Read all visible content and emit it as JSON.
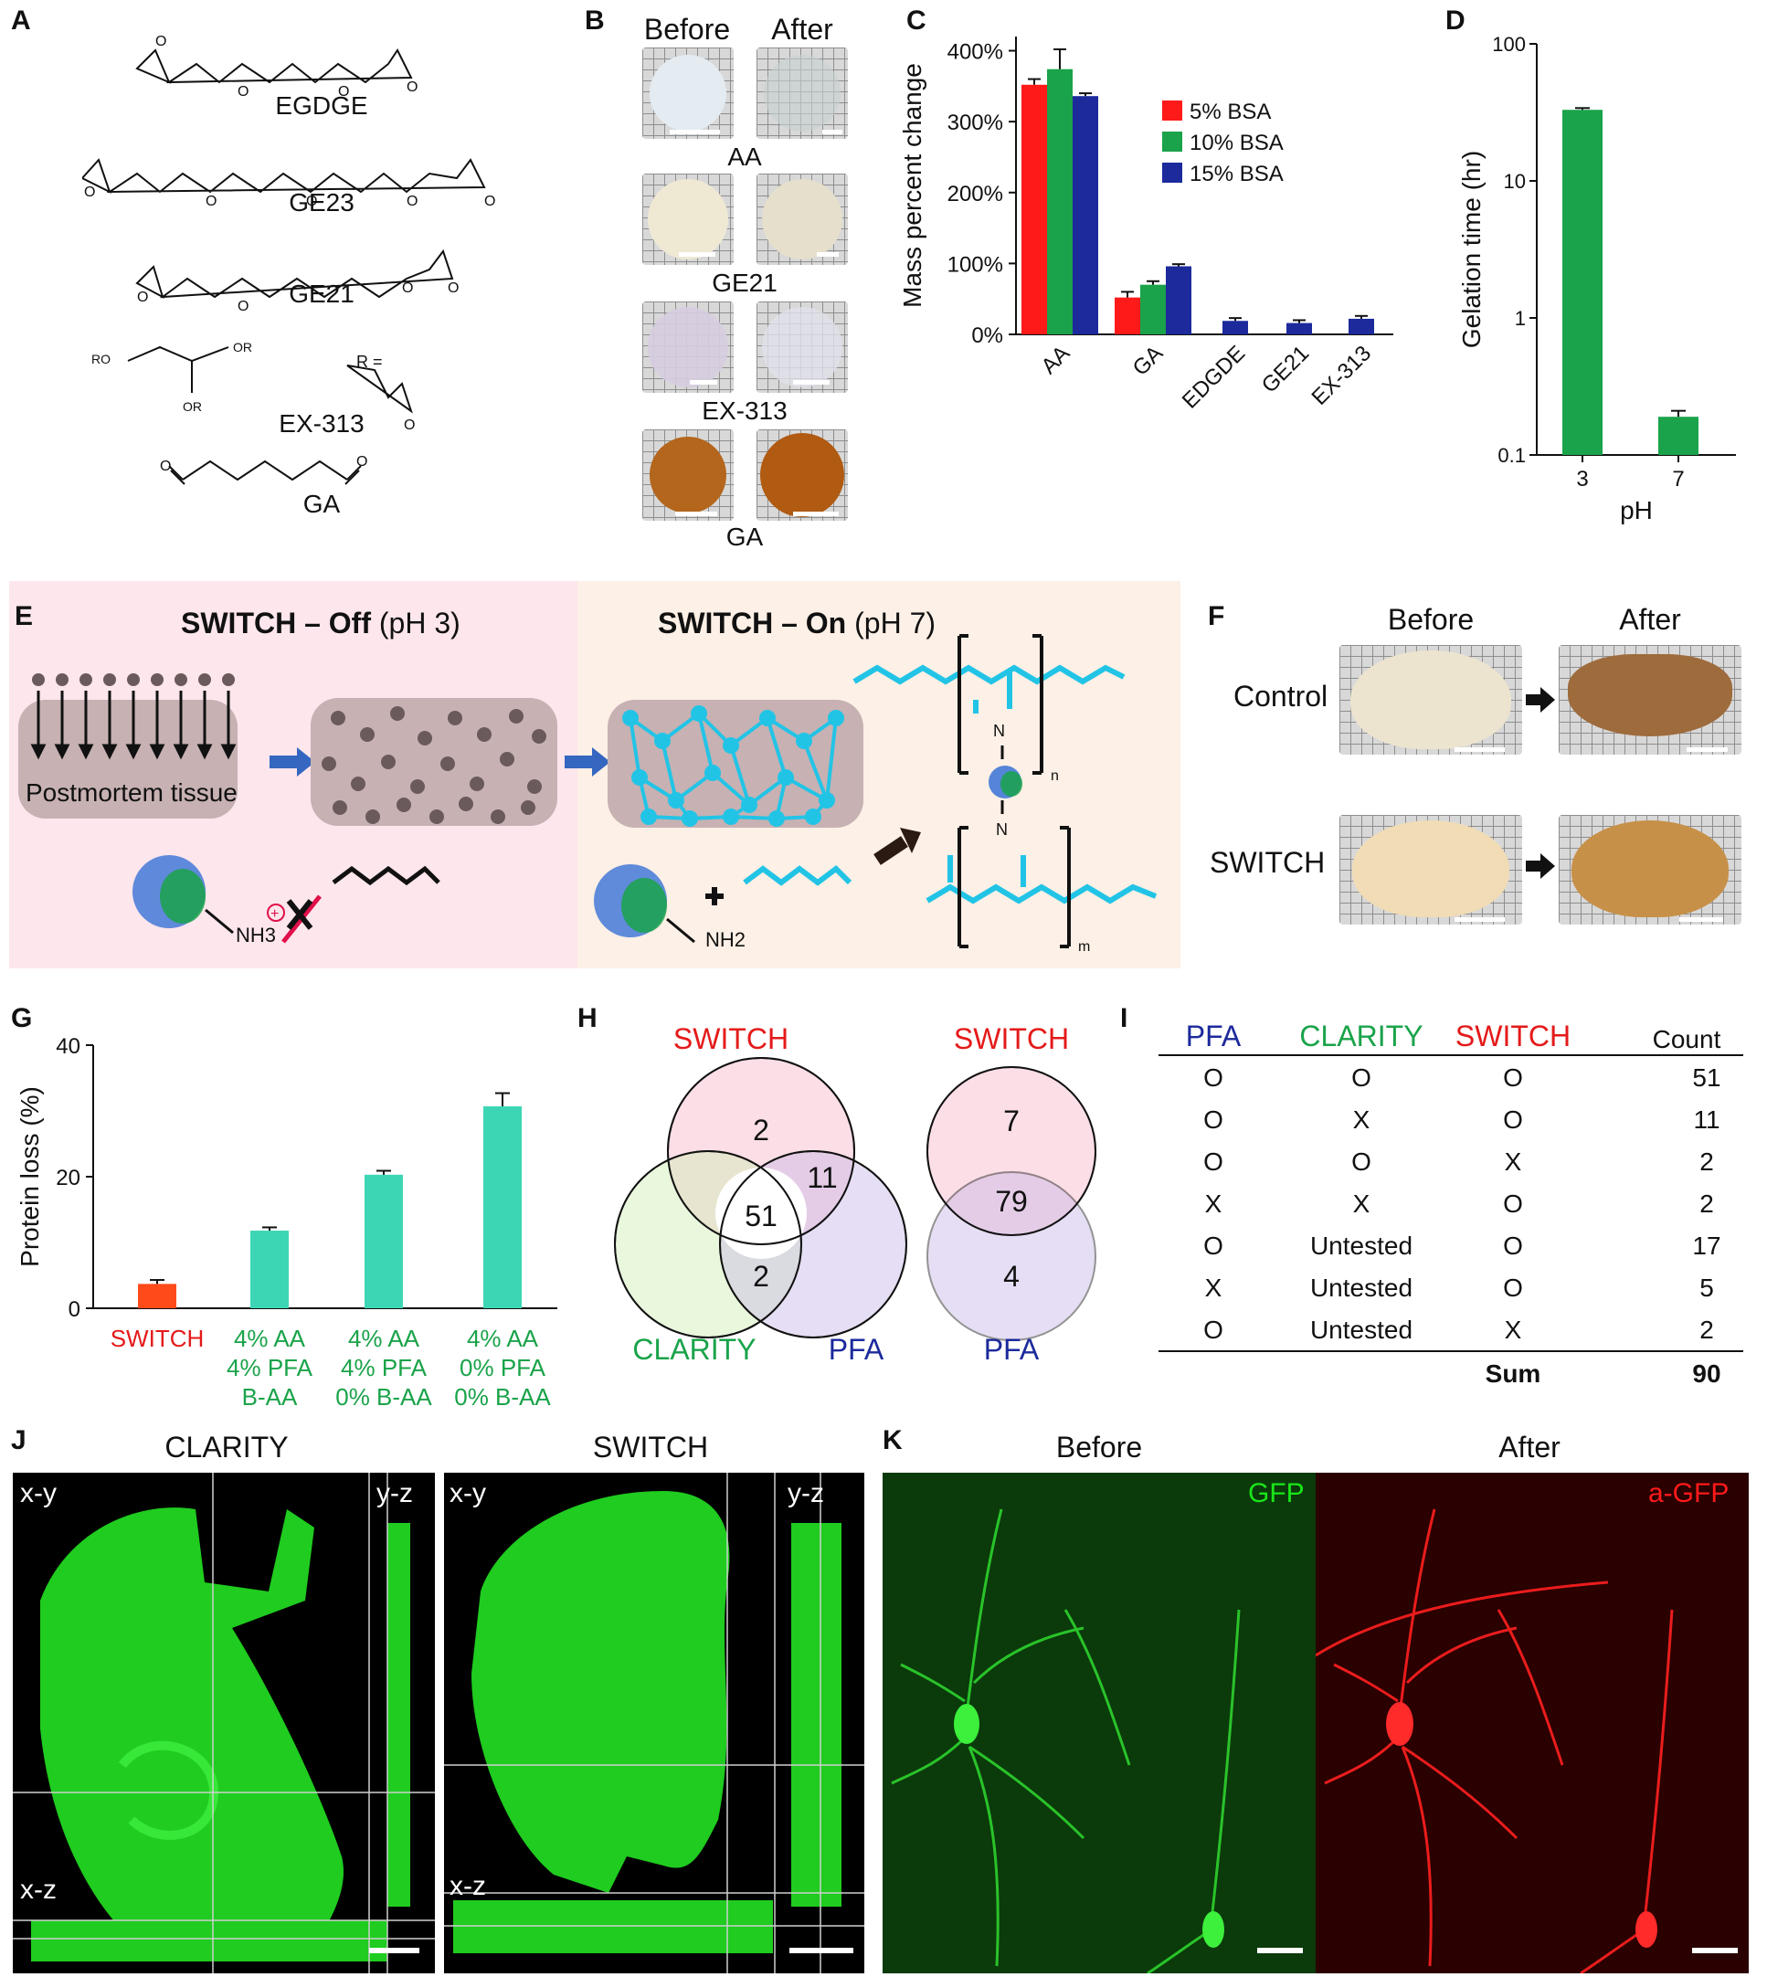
{
  "panels": {
    "A": {
      "letter": "A",
      "names": [
        "EGDGE",
        "GE23",
        "GE21",
        "EX-313",
        "GA"
      ],
      "ex313_substituents": {
        "ro1": "RO",
        "ro2": "OR",
        "ro3": "OR",
        "r_eq": "R ="
      }
    },
    "B": {
      "letter": "B",
      "headers": [
        "Before",
        "After"
      ],
      "rows": [
        "AA",
        "GE21",
        "EX-313",
        "GA"
      ]
    },
    "C": {
      "letter": "C"
    },
    "D": {
      "letter": "D"
    },
    "E": {
      "letter": "E",
      "off_title_bold": "SWITCH – Off",
      "off_title_ph": "(pH 3)",
      "on_title_bold": "SWITCH – On",
      "on_title_ph": "(pH 7)",
      "tissue_label": "Postmortem tissue",
      "nh3": "NH3",
      "nh2": "NH2",
      "n_label": "N",
      "sub_n": "n",
      "sub_m": "m"
    },
    "F": {
      "letter": "F",
      "headers": [
        "Before",
        "After"
      ],
      "rows": [
        "Control",
        "SWITCH"
      ]
    },
    "G": {
      "letter": "G"
    },
    "H": {
      "letter": "H"
    },
    "I": {
      "letter": "I"
    },
    "J": {
      "letter": "J",
      "titles": [
        "CLARITY",
        "SWITCH"
      ],
      "view_labels": {
        "xy": "x-y",
        "yz": "y-z",
        "xz": "x-z"
      }
    },
    "K": {
      "letter": "K",
      "titles": [
        "Before",
        "After"
      ],
      "channel_labels": [
        "GFP",
        "a-GFP"
      ]
    }
  },
  "colors": {
    "red": "#ff1a1a",
    "green": "#1aa34a",
    "blue": "#1c2a9c",
    "teal": "#3dd6b5",
    "switch_red": "#ff4a1a",
    "cyan": "#22c4e6",
    "off_bg": "#fde6ec",
    "on_bg": "#fdf0e6",
    "fluor_green": "#19e619",
    "fluor_red": "#ff1a1a"
  },
  "chart_data": [
    {
      "panel": "C",
      "type": "bar",
      "categories": [
        "AA",
        "GA",
        "EDGDE",
        "GE21",
        "EX-313"
      ],
      "series": [
        {
          "name": "5% BSA",
          "values": [
            352,
            52,
            null,
            null,
            null
          ],
          "errors": [
            8,
            8,
            null,
            null,
            null
          ]
        },
        {
          "name": "10% BSA",
          "values": [
            374,
            70,
            null,
            null,
            null
          ],
          "errors": [
            28,
            5,
            null,
            null,
            null
          ]
        },
        {
          "name": "15% BSA",
          "values": [
            336,
            96,
            19,
            16,
            22
          ],
          "errors": [
            4,
            3,
            4,
            4,
            4
          ]
        }
      ],
      "ylabel": "Mass percent change",
      "yticks": [
        "0%",
        "100%",
        "200%",
        "300%",
        "400%"
      ],
      "ylim": [
        0,
        420
      ],
      "legend": "top-right"
    },
    {
      "panel": "D",
      "type": "bar",
      "categories": [
        "3",
        "7"
      ],
      "values": [
        33,
        0.19
      ],
      "errors": [
        1,
        0.02
      ],
      "xlabel": "pH",
      "ylabel": "Gelation time (hr)",
      "yscale": "log",
      "yticks": [
        "0.1",
        "1",
        "10",
        "100"
      ],
      "ylim": [
        0.1,
        100
      ]
    },
    {
      "panel": "G",
      "type": "bar",
      "categories": [
        [
          "SWITCH"
        ],
        [
          "4% AA",
          "4% PFA",
          "B-AA"
        ],
        [
          "4% AA",
          "4% PFA",
          "0% B-AA"
        ],
        [
          "4% AA",
          "0% PFA",
          "0% B-AA"
        ]
      ],
      "values": [
        3.7,
        11.8,
        20.3,
        30.7
      ],
      "errors": [
        0.6,
        0.5,
        0.6,
        2.0
      ],
      "ylabel": "Protein loss (%)",
      "yticks": [
        "0",
        "20",
        "40"
      ],
      "ylim": [
        0,
        40
      ]
    },
    {
      "panel": "H",
      "type": "venn",
      "diagrams": [
        {
          "sets": [
            "SWITCH",
            "CLARITY",
            "PFA"
          ],
          "regions": {
            "switch_only": "2",
            "switch_pfa": "11",
            "all": "51",
            "clarity_pfa": "2"
          }
        },
        {
          "sets": [
            "SWITCH",
            "PFA"
          ],
          "regions": {
            "switch_only": "7",
            "both": "79",
            "pfa_only": "4"
          }
        }
      ]
    },
    {
      "panel": "I",
      "type": "table",
      "columns": [
        "PFA",
        "CLARITY",
        "SWITCH",
        "Count"
      ],
      "rows": [
        [
          "O",
          "O",
          "O",
          "51"
        ],
        [
          "O",
          "X",
          "O",
          "11"
        ],
        [
          "O",
          "O",
          "X",
          "2"
        ],
        [
          "X",
          "X",
          "O",
          "2"
        ],
        [
          "O",
          "Untested",
          "O",
          "17"
        ],
        [
          "X",
          "Untested",
          "O",
          "5"
        ],
        [
          "O",
          "Untested",
          "X",
          "2"
        ]
      ],
      "sum_label": "Sum",
      "sum_value": "90"
    }
  ]
}
